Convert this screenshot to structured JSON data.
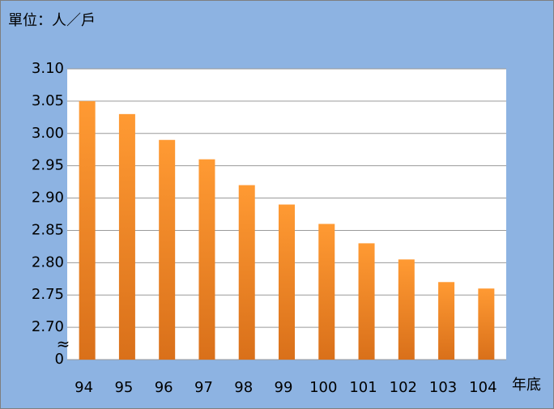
{
  "chart_data": {
    "type": "bar",
    "title": "單位：人／戶",
    "x_label": "年底",
    "categories": [
      "94",
      "95",
      "96",
      "97",
      "98",
      "99",
      "100",
      "101",
      "102",
      "103",
      "104"
    ],
    "values": [
      3.05,
      3.03,
      2.99,
      2.96,
      2.92,
      2.89,
      2.86,
      2.83,
      2.805,
      2.77,
      2.76
    ],
    "color": "#f28c28",
    "ylim": [
      0,
      3.1
    ],
    "yticks": [
      0,
      {
        "value": 2.7,
        "label": "2.70"
      },
      2.75,
      {
        "value": 2.8,
        "label": "2.80"
      },
      2.85,
      {
        "value": 2.9,
        "label": "2.90"
      },
      2.95,
      {
        "value": 3.0,
        "label": "3.00"
      },
      3.05,
      {
        "value": 3.1,
        "label": "3.10"
      }
    ],
    "grid": true
  }
}
